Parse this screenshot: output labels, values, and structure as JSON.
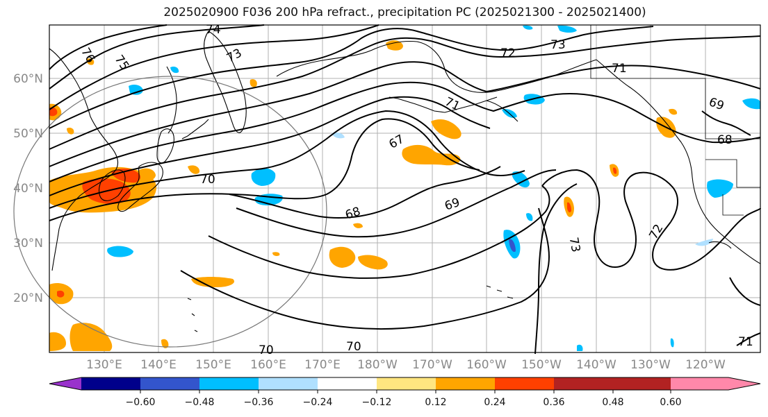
{
  "title": "2025020900 F036 200 hPa refract., precipitation PC (2025021300 - 2025021400)",
  "lat_labels": [
    "60°N",
    "50°N",
    "40°N",
    "30°N",
    "20°N"
  ],
  "lon_labels": [
    "130°E",
    "140°E",
    "150°E",
    "160°E",
    "170°E",
    "180°W",
    "170°W",
    "160°W",
    "150°W",
    "140°W",
    "130°W",
    "120°W"
  ],
  "contour_labels": [
    "74",
    "76",
    "75",
    "73",
    "72",
    "73",
    "71",
    "71",
    "69",
    "68",
    "67",
    "70",
    "68",
    "69",
    "73",
    "72",
    "70",
    "70",
    "71"
  ],
  "colorbar": {
    "colors": [
      "#9932cc",
      "#00008b",
      "#3355cc",
      "#00bfff",
      "#b0e0ff",
      "#ffffff",
      "#ffe680",
      "#ffa500",
      "#ff4000",
      "#b22222",
      "#ff88aa"
    ],
    "tick_labels": [
      "−0.60",
      "−0.48",
      "−0.36",
      "−0.24",
      "−0.12",
      "0.12",
      "0.24",
      "0.36",
      "0.48",
      "0.60"
    ]
  }
}
